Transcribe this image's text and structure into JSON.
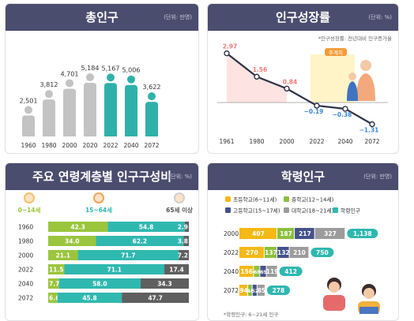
{
  "colors": {
    "header": "#4b4d6e",
    "gray": "#c3c3c3",
    "teal": "#2fb1a9",
    "line": "#2f3247",
    "pink": "#ef7b7b",
    "blue": "#3c86c9",
    "lime": "#9bc53d",
    "bar_teal": "#2fb8b0",
    "bar_gray": "#5f5f5f"
  },
  "panels": {
    "total": {
      "title": "총인구",
      "unit": "(단위: 만명)"
    },
    "growth": {
      "title": "인구성장률",
      "unit": "(단위: %)",
      "note": "*인구성장률: 전년대비 인구증가율",
      "badge": "추계치"
    },
    "age": {
      "title": "주요 연령계층별 인구구성비",
      "unit": "(단위: %)"
    },
    "school": {
      "title": "학령인구",
      "unit": "(단위: 만명)",
      "note": "*학령인구: 6~21세 인구"
    }
  },
  "chart_data": [
    {
      "type": "bar",
      "title": "총인구",
      "unit": "(단위: 만명)",
      "categories": [
        "1960",
        "1980",
        "2000",
        "2020",
        "2022",
        "2040",
        "2072"
      ],
      "values": [
        2501,
        3812,
        4701,
        5184,
        5167,
        5006,
        3622
      ],
      "labels": [
        "2,501",
        "3,812",
        "4,701",
        "5,184",
        "5,167",
        "5,006",
        "3,622"
      ],
      "projected_from": "2022"
    },
    {
      "type": "line",
      "title": "인구성장률",
      "unit": "(단위: %)",
      "categories": [
        "1961",
        "1980",
        "2000",
        "2022",
        "2040",
        "2072"
      ],
      "values": [
        2.97,
        1.56,
        0.84,
        -0.19,
        -0.38,
        -1.31
      ],
      "labels": [
        "2.97",
        "1.56",
        "0.84",
        "−0.19",
        "−0.38",
        "−1.31"
      ],
      "projected_from": "2022"
    },
    {
      "type": "bar",
      "stacked": true,
      "orientation": "horizontal",
      "title": "주요 연령계층별 인구구성비",
      "unit": "(단위: %)",
      "categories": [
        "1960",
        "1980",
        "2000",
        "2022",
        "2040",
        "2072"
      ],
      "series": [
        {
          "name": "0~14세",
          "values": [
            42.3,
            34.0,
            21.1,
            11.5,
            7.7,
            6.6
          ]
        },
        {
          "name": "15~64세",
          "values": [
            54.8,
            62.2,
            71.7,
            71.1,
            58.0,
            45.8
          ]
        },
        {
          "name": "65세 이상",
          "values": [
            2.9,
            3.8,
            7.2,
            17.4,
            34.3,
            47.7
          ]
        }
      ]
    },
    {
      "type": "bar",
      "stacked": true,
      "orientation": "horizontal",
      "title": "학령인구",
      "unit": "(단위: 만명)",
      "categories": [
        "2000",
        "2022",
        "2040",
        "2072"
      ],
      "series": [
        {
          "name": "초등학교(6~11세)",
          "values": [
            407,
            270,
            156,
            94
          ]
        },
        {
          "name": "중학교(12~14세)",
          "values": [
            187,
            137,
            68,
            48
          ]
        },
        {
          "name": "고등학교(15~17세)",
          "values": [
            217,
            132,
            69,
            52
          ]
        },
        {
          "name": "대학교(18~21세)",
          "values": [
            327,
            210,
            119,
            85
          ]
        }
      ],
      "totals_name": "학령인구",
      "totals": [
        1138,
        750,
        412,
        278
      ],
      "total_labels": [
        "1,138",
        "750",
        "412",
        "278"
      ]
    }
  ]
}
